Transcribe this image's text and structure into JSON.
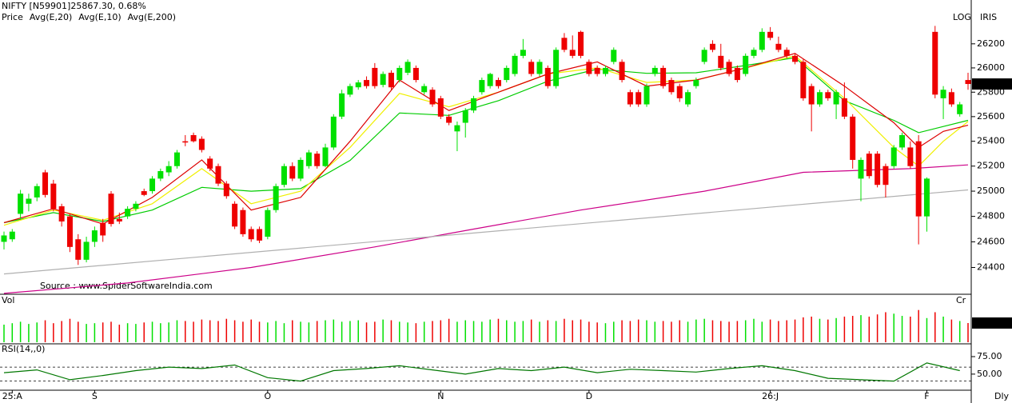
{
  "chart_data": {
    "type": "candlestick",
    "title": "NIFTY [N59901]25867.30,  0.68%",
    "corner_labels": [
      "LOG",
      "IRIS"
    ],
    "source": "Source : www.SpiderSoftwareIndia.com",
    "log": true,
    "up_color": "#00e000",
    "down_color": "#ee0000",
    "legend": [
      {
        "name": "Price",
        "color": "#00c000"
      },
      {
        "name": "Avg(E,20)",
        "color": "#00c000"
      },
      {
        "name": "Avg(E,10)",
        "color": "#e8e800"
      },
      {
        "name": "Avg(E,200)",
        "color": "#cc0099"
      }
    ],
    "ylim": [
      24193,
      26568
    ],
    "yticks": [
      24400,
      24600,
      24800,
      25000,
      25200,
      25400,
      25600,
      25800,
      26000,
      26200
    ],
    "last_price_color": "#000000",
    "candles": [
      [
        24600,
        24680,
        24540,
        24650
      ],
      [
        24620,
        24700,
        24600,
        24680
      ],
      [
        24820,
        25010,
        24780,
        24980
      ],
      [
        24900,
        24980,
        24840,
        24940
      ],
      [
        24950,
        25060,
        24920,
        25040
      ],
      [
        25150,
        25170,
        24950,
        24970
      ],
      [
        25060,
        25090,
        24840,
        24860
      ],
      [
        24880,
        24900,
        24720,
        24760
      ],
      [
        24800,
        24820,
        24520,
        24560
      ],
      [
        24620,
        24660,
        24420,
        24460
      ],
      [
        24460,
        24640,
        24440,
        24600
      ],
      [
        24600,
        24720,
        24560,
        24690
      ],
      [
        24750,
        24780,
        24600,
        24650
      ],
      [
        24980,
        25000,
        24720,
        24740
      ],
      [
        24780,
        24830,
        24740,
        24760
      ],
      [
        24800,
        24880,
        24780,
        24860
      ],
      [
        24860,
        24920,
        24840,
        24900
      ],
      [
        25000,
        25020,
        24960,
        24970
      ],
      [
        25000,
        25120,
        24980,
        25100
      ],
      [
        25100,
        25180,
        25080,
        25160
      ],
      [
        25150,
        25240,
        25120,
        25200
      ],
      [
        25200,
        25330,
        25180,
        25310
      ],
      [
        25400,
        25450,
        25360,
        25390
      ],
      [
        25450,
        25470,
        25390,
        25400
      ],
      [
        25420,
        25440,
        25310,
        25330
      ],
      [
        25260,
        25280,
        25160,
        25180
      ],
      [
        25200,
        25220,
        25040,
        25060
      ],
      [
        25060,
        25080,
        24940,
        24960
      ],
      [
        24900,
        24920,
        24700,
        24720
      ],
      [
        24850,
        24870,
        24640,
        24660
      ],
      [
        24700,
        24720,
        24600,
        24620
      ],
      [
        24700,
        24720,
        24590,
        24610
      ],
      [
        24640,
        24870,
        24620,
        24850
      ],
      [
        24850,
        25060,
        24830,
        25040
      ],
      [
        25050,
        25220,
        25030,
        25200
      ],
      [
        25200,
        25230,
        25080,
        25100
      ],
      [
        25100,
        25270,
        25080,
        25250
      ],
      [
        25200,
        25330,
        25180,
        25310
      ],
      [
        25300,
        25320,
        25180,
        25200
      ],
      [
        25200,
        25380,
        25190,
        25350
      ],
      [
        25350,
        25620,
        25330,
        25600
      ],
      [
        25600,
        25820,
        25580,
        25790
      ],
      [
        25780,
        25870,
        25760,
        25850
      ],
      [
        25840,
        25900,
        25820,
        25880
      ],
      [
        25900,
        25930,
        25830,
        25850
      ],
      [
        26000,
        26040,
        25830,
        25850
      ],
      [
        25860,
        25970,
        25840,
        25950
      ],
      [
        25960,
        25980,
        25820,
        25840
      ],
      [
        25900,
        26020,
        25880,
        26000
      ],
      [
        25960,
        26070,
        25940,
        26050
      ],
      [
        26000,
        26020,
        25880,
        25900
      ],
      [
        25800,
        25870,
        25780,
        25850
      ],
      [
        25820,
        25840,
        25680,
        25700
      ],
      [
        25750,
        25770,
        25580,
        25600
      ],
      [
        25600,
        25620,
        25530,
        25550
      ],
      [
        25480,
        25560,
        25320,
        25530
      ],
      [
        25550,
        25670,
        25430,
        25650
      ],
      [
        25650,
        25770,
        25630,
        25750
      ],
      [
        25800,
        25920,
        25780,
        25900
      ],
      [
        25850,
        25960,
        25830,
        25950
      ],
      [
        25900,
        25920,
        25830,
        25850
      ],
      [
        25900,
        26020,
        25880,
        26000
      ],
      [
        25950,
        26120,
        25930,
        26100
      ],
      [
        26100,
        26240,
        26080,
        26150
      ],
      [
        26050,
        26070,
        25930,
        25950
      ],
      [
        25950,
        26070,
        25930,
        26050
      ],
      [
        26000,
        26020,
        25830,
        25850
      ],
      [
        25850,
        26170,
        25830,
        26150
      ],
      [
        26250,
        26290,
        26130,
        26150
      ],
      [
        26150,
        26270,
        26080,
        26100
      ],
      [
        26300,
        26310,
        26080,
        26100
      ],
      [
        26050,
        26070,
        25930,
        25950
      ],
      [
        26000,
        26020,
        25930,
        25950
      ],
      [
        25950,
        26020,
        25930,
        26000
      ],
      [
        26050,
        26170,
        26030,
        26150
      ],
      [
        26050,
        26070,
        25880,
        25900
      ],
      [
        25800,
        25820,
        25680,
        25700
      ],
      [
        25800,
        25820,
        25680,
        25700
      ],
      [
        25700,
        25870,
        25680,
        25850
      ],
      [
        25950,
        26020,
        25930,
        26000
      ],
      [
        26000,
        26020,
        25830,
        25850
      ],
      [
        25900,
        25920,
        25780,
        25800
      ],
      [
        25850,
        25870,
        25720,
        25750
      ],
      [
        25700,
        25820,
        25680,
        25800
      ],
      [
        25850,
        25920,
        25830,
        25900
      ],
      [
        26050,
        26170,
        26030,
        26150
      ],
      [
        26200,
        26230,
        26130,
        26150
      ],
      [
        26100,
        26200,
        25980,
        26000
      ],
      [
        26050,
        26070,
        25930,
        25950
      ],
      [
        26000,
        26020,
        25880,
        25900
      ],
      [
        25950,
        26120,
        25930,
        26100
      ],
      [
        26100,
        26170,
        26080,
        26150
      ],
      [
        26150,
        26330,
        26130,
        26300
      ],
      [
        26300,
        26340,
        26230,
        26250
      ],
      [
        26200,
        26260,
        26130,
        26150
      ],
      [
        26150,
        26170,
        26080,
        26100
      ],
      [
        26100,
        26120,
        26030,
        26050
      ],
      [
        26050,
        26070,
        25730,
        25750
      ],
      [
        25850,
        25870,
        25480,
        25700
      ],
      [
        25700,
        25820,
        25680,
        25800
      ],
      [
        25800,
        25820,
        25730,
        25750
      ],
      [
        25700,
        25820,
        25580,
        25800
      ],
      [
        25750,
        25880,
        25580,
        25600
      ],
      [
        25600,
        25620,
        25180,
        25250
      ],
      [
        25100,
        25270,
        24920,
        25250
      ],
      [
        25300,
        25320,
        25100,
        25120
      ],
      [
        25300,
        25320,
        25030,
        25050
      ],
      [
        25200,
        25220,
        24950,
        25050
      ],
      [
        25200,
        25370,
        25180,
        25350
      ],
      [
        25350,
        25470,
        25330,
        25450
      ],
      [
        25350,
        25400,
        25180,
        25200
      ],
      [
        25400,
        25450,
        24580,
        24800
      ],
      [
        24800,
        25110,
        24680,
        25100
      ],
      [
        26300,
        26350,
        25750,
        25780
      ],
      [
        25750,
        25850,
        25580,
        25820
      ],
      [
        25800,
        25830,
        25680,
        25700
      ],
      [
        25620,
        25720,
        25600,
        25700
      ],
      [
        25900,
        25960,
        25820,
        25867.3
      ]
    ],
    "series": [
      {
        "color": "#00cc00",
        "x": [
          0,
          6,
          12,
          18,
          24,
          30,
          36,
          42,
          48,
          54,
          60,
          66,
          72,
          78,
          84,
          90,
          96,
          102,
          108,
          111,
          114,
          117
        ],
        "values": [
          24750,
          24830,
          24760,
          24850,
          25030,
          25000,
          25020,
          25245,
          25630,
          25610,
          25730,
          25890,
          25990,
          25955,
          25960,
          26020,
          26085,
          25730,
          25570,
          25470,
          25520,
          25570
        ]
      },
      {
        "color": "#f0f000",
        "x": [
          0,
          6,
          12,
          18,
          24,
          30,
          36,
          42,
          48,
          54,
          60,
          66,
          72,
          78,
          84,
          90,
          96,
          102,
          108,
          111,
          114,
          117
        ],
        "values": [
          24730,
          24850,
          24770,
          24900,
          25180,
          24900,
          25000,
          25350,
          25790,
          25680,
          25800,
          25950,
          26000,
          25880,
          25900,
          26000,
          26100,
          25750,
          25350,
          25200,
          25400,
          25560
        ]
      },
      {
        "color": "#dd0000",
        "x": [
          0,
          6,
          12,
          18,
          24,
          30,
          36,
          42,
          48,
          54,
          60,
          66,
          72,
          78,
          84,
          90,
          96,
          102,
          108,
          111,
          114,
          117
        ],
        "values": [
          24750,
          24860,
          24740,
          24950,
          25250,
          24850,
          24950,
          25400,
          25900,
          25650,
          25800,
          25950,
          26050,
          25850,
          25900,
          26000,
          26120,
          25850,
          25550,
          25350,
          25480,
          25530
        ]
      },
      {
        "color": "#cc0088",
        "x": [
          0,
          15,
          30,
          45,
          57,
          70,
          85,
          97,
          110,
          117
        ],
        "values": [
          24200,
          24280,
          24400,
          24560,
          24700,
          24850,
          25000,
          25150,
          25180,
          25210
        ]
      },
      {
        "color": "#b0b0b0",
        "x": [
          0,
          117
        ],
        "values": [
          24350,
          25010
        ]
      }
    ],
    "volume": {
      "label": "Vol",
      "unit": "Cr",
      "ylim": [
        0,
        1092
      ],
      "values": [
        480,
        520,
        560,
        500,
        540,
        600,
        520,
        580,
        640,
        560,
        500,
        520,
        540,
        560,
        480,
        520,
        500,
        540,
        560,
        520,
        540,
        600,
        580,
        560,
        620,
        600,
        580,
        640,
        600,
        560,
        620,
        560,
        540,
        580,
        520,
        600,
        560,
        540,
        580,
        600,
        620,
        560,
        580,
        600,
        540,
        560,
        620,
        600,
        560,
        540,
        520,
        560,
        580,
        600,
        640,
        560,
        600,
        580,
        560,
        620,
        640,
        600,
        560,
        580,
        620,
        560,
        600,
        580,
        640,
        600,
        620,
        560,
        540,
        520,
        560,
        600,
        580,
        620,
        600,
        560,
        580,
        560,
        600,
        560,
        620,
        640,
        600,
        580,
        560,
        580,
        600,
        640,
        560,
        620,
        580,
        600,
        620,
        680,
        700,
        640,
        620,
        660,
        700,
        720,
        740,
        700,
        760,
        820,
        780,
        720,
        700,
        880,
        660,
        820,
        700,
        620,
        580,
        524.38
      ]
    },
    "rsi": {
      "label": "RSI(14,,0)",
      "color": "#007700",
      "ylim": [
        27,
        91
      ],
      "yticks": [
        {
          "value": 75,
          "label": "75.00"
        },
        {
          "value": 50,
          "label": "50.00"
        }
      ],
      "levels": [
        60,
        40
      ],
      "x": [
        0,
        4,
        8,
        12,
        16,
        20,
        24,
        28,
        32,
        36,
        40,
        44,
        48,
        52,
        56,
        60,
        64,
        68,
        72,
        76,
        80,
        84,
        88,
        92,
        96,
        100,
        104,
        108,
        112,
        116
      ],
      "values": [
        52,
        56,
        42,
        48,
        55,
        60,
        58,
        63,
        45,
        40,
        55,
        58,
        62,
        56,
        50,
        58,
        55,
        60,
        52,
        57,
        55,
        53,
        58,
        62,
        55,
        44,
        42,
        40,
        66,
        55
      ]
    },
    "xticks": [
      {
        "value": 1,
        "label": "25:A"
      },
      {
        "value": 11,
        "label": "S"
      },
      {
        "value": 32,
        "label": "O"
      },
      {
        "value": 53,
        "label": "N"
      },
      {
        "value": 71,
        "label": "D"
      },
      {
        "value": 93,
        "label": "26:J"
      },
      {
        "value": 112,
        "label": "F"
      }
    ],
    "period": "Dly"
  }
}
